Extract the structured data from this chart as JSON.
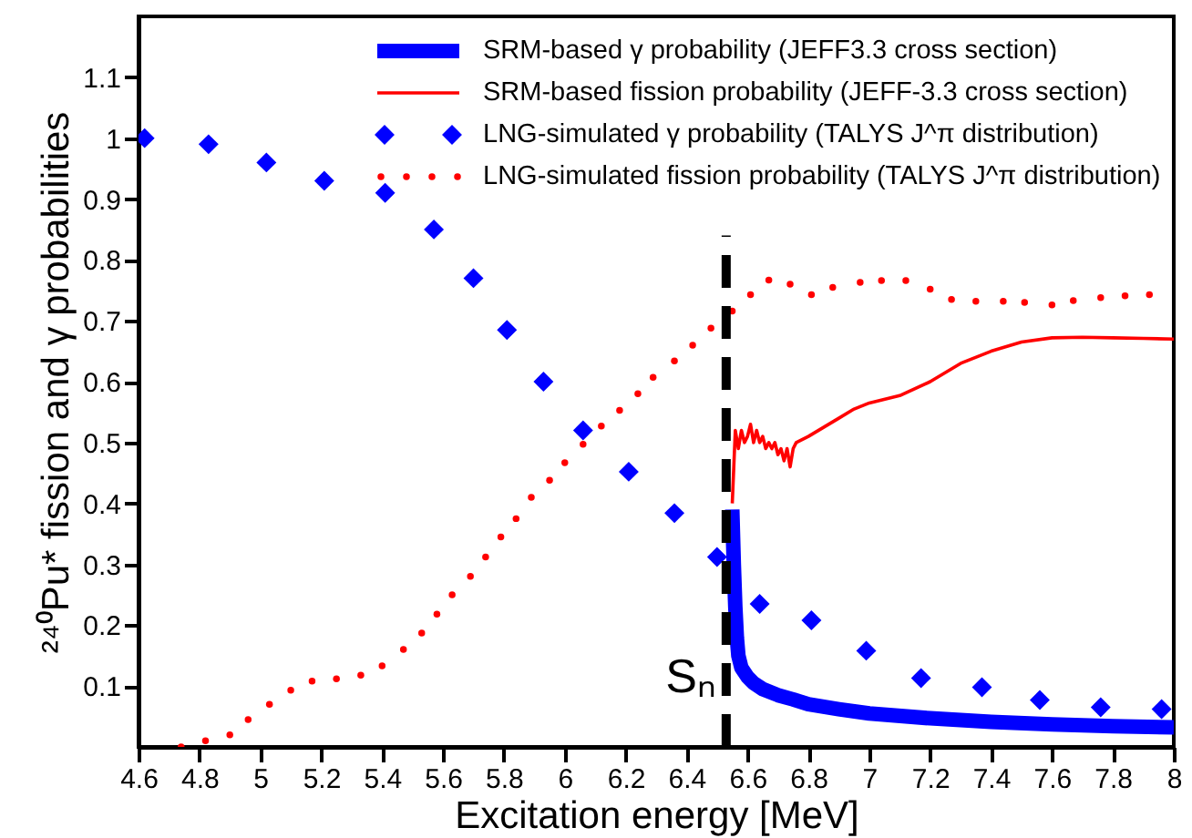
{
  "chart_data": {
    "type": "line",
    "xlabel": "Excitation energy [MeV]",
    "ylabel": "²⁴⁰Pu* fission and γ probabilities",
    "xlim": [
      4.6,
      8
    ],
    "ylim": [
      0,
      1.2
    ],
    "xticks": [
      4.6,
      4.8,
      5,
      5.2,
      5.4,
      5.6,
      5.8,
      6,
      6.2,
      6.4,
      6.6,
      6.8,
      7,
      7.2,
      7.4,
      7.6,
      7.8,
      8
    ],
    "yticks": [
      0.1,
      0.2,
      0.3,
      0.4,
      0.5,
      0.6,
      0.7,
      0.8,
      0.9,
      1,
      1.1
    ],
    "grid": false,
    "legend": "top right",
    "series": [
      {
        "name": "SRM-based  γ probability (JEFF3.3 cross section)",
        "color": "#0000ff",
        "x": [
          6.55,
          6.555,
          6.56,
          6.565,
          6.57,
          6.58,
          6.6,
          6.62,
          6.65,
          6.7,
          6.75,
          6.8,
          6.9,
          7.0,
          7.2,
          7.4,
          7.6,
          7.8,
          8.0
        ],
        "values": [
          0.39,
          0.3,
          0.23,
          0.18,
          0.15,
          0.13,
          0.115,
          0.105,
          0.095,
          0.085,
          0.078,
          0.07,
          0.062,
          0.055,
          0.047,
          0.041,
          0.037,
          0.034,
          0.032
        ]
      },
      {
        "name": "SRM-based fission probability  (JEFF-3.3 cross section)",
        "color": "#ff0000",
        "x": [
          6.55,
          6.555,
          6.56,
          6.57,
          6.58,
          6.59,
          6.6,
          6.61,
          6.62,
          6.63,
          6.64,
          6.65,
          6.66,
          6.67,
          6.68,
          6.69,
          6.7,
          6.71,
          6.72,
          6.73,
          6.74,
          6.75,
          6.76,
          6.8,
          6.85,
          6.9,
          6.95,
          7.0,
          7.1,
          7.2,
          7.3,
          7.4,
          7.5,
          7.6,
          7.7,
          7.8,
          7.9,
          8.0
        ],
        "values": [
          0.4,
          0.46,
          0.52,
          0.49,
          0.52,
          0.5,
          0.51,
          0.53,
          0.5,
          0.52,
          0.5,
          0.51,
          0.49,
          0.5,
          0.49,
          0.5,
          0.48,
          0.49,
          0.47,
          0.49,
          0.46,
          0.49,
          0.5,
          0.51,
          0.525,
          0.54,
          0.555,
          0.565,
          0.577,
          0.6,
          0.63,
          0.65,
          0.665,
          0.672,
          0.673,
          0.672,
          0.671,
          0.67
        ]
      },
      {
        "name": "LNG-simulated  γ probability (TALYS J^π distribution)",
        "type": "scatter",
        "marker": "diamond",
        "color": "#0000ff",
        "x": [
          4.62,
          4.83,
          5.02,
          5.21,
          5.41,
          5.57,
          5.7,
          5.81,
          5.93,
          6.06,
          6.21,
          6.36,
          6.5,
          6.64,
          6.81,
          6.99,
          7.17,
          7.37,
          7.56,
          7.76,
          7.96
        ],
        "values": [
          1.0,
          0.99,
          0.96,
          0.93,
          0.91,
          0.85,
          0.77,
          0.685,
          0.6,
          0.52,
          0.452,
          0.384,
          0.312,
          0.235,
          0.208,
          0.158,
          0.113,
          0.098,
          0.077,
          0.065,
          0.062
        ]
      },
      {
        "name": "LNG-simulated fission probability (TALYS J^π distribution)",
        "type": "scatter",
        "marker": "circle",
        "color": "#ff0000",
        "x": [
          4.74,
          4.82,
          4.9,
          4.96,
          5.03,
          5.1,
          5.17,
          5.25,
          5.33,
          5.4,
          5.47,
          5.53,
          5.58,
          5.63,
          5.69,
          5.74,
          5.79,
          5.84,
          5.89,
          5.95,
          6.0,
          6.06,
          6.12,
          6.18,
          6.24,
          6.29,
          6.36,
          6.42,
          6.48,
          6.55,
          6.61,
          6.67,
          6.74,
          6.81,
          6.88,
          6.97,
          7.04,
          7.12,
          7.2,
          7.27,
          7.35,
          7.44,
          7.51,
          7.6,
          7.67,
          7.76,
          7.84,
          7.92
        ],
        "values": [
          0.0,
          0.01,
          0.02,
          0.045,
          0.07,
          0.093,
          0.108,
          0.112,
          0.118,
          0.133,
          0.16,
          0.187,
          0.218,
          0.25,
          0.28,
          0.312,
          0.345,
          0.375,
          0.41,
          0.438,
          0.467,
          0.497,
          0.527,
          0.553,
          0.58,
          0.607,
          0.634,
          0.66,
          0.688,
          0.716,
          0.743,
          0.767,
          0.76,
          0.743,
          0.755,
          0.763,
          0.766,
          0.766,
          0.752,
          0.735,
          0.732,
          0.732,
          0.73,
          0.726,
          0.733,
          0.738,
          0.741,
          0.743
        ]
      },
      {
        "line_style": "dashed",
        "color": "#000000",
        "x": [
          6.53,
          6.53
        ],
        "values": [
          0,
          0.84
        ]
      }
    ],
    "annotations": [
      "Sₙ"
    ]
  }
}
